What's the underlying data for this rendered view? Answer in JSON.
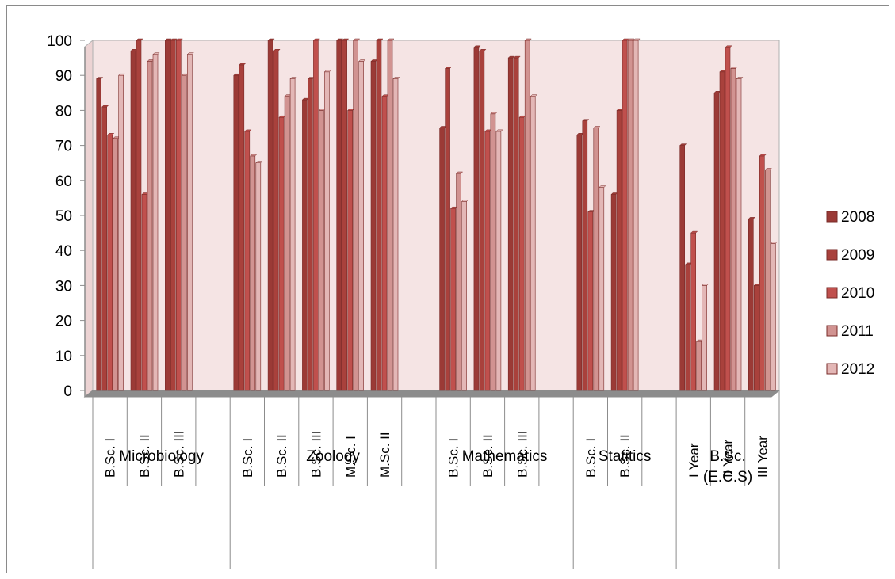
{
  "chart_data": {
    "type": "bar",
    "title": "",
    "xlabel": "",
    "ylabel": "",
    "ylim": [
      0,
      100
    ],
    "yticks": [
      "0",
      "10",
      "20",
      "30",
      "40",
      "50",
      "60",
      "70",
      "80",
      "90",
      "100"
    ],
    "grid": false,
    "legend_position": "right",
    "groups": [
      {
        "name": "Microbiology",
        "categories": [
          "B.Sc. I",
          "B.Sc. II",
          "B.Sc. III",
          ""
        ]
      },
      {
        "name": "Zoology",
        "categories": [
          "B.Sc. I",
          "B.Sc. II",
          "B.Sc. III",
          "M.Sc. I",
          "M.Sc. II",
          ""
        ]
      },
      {
        "name": "Mathematics",
        "categories": [
          "B.Sc. I",
          "B.Sc. II",
          "B.Sc. III",
          ""
        ]
      },
      {
        "name": "Statitics",
        "categories": [
          "B.Sc. I",
          "B.Sc. II",
          ""
        ]
      },
      {
        "name": "B.Sc. (E.C.S)",
        "categories": [
          "I Year",
          "II Year",
          "III Year"
        ]
      }
    ],
    "series": [
      {
        "name": "2008",
        "color": "#9b3a36",
        "values": [
          89,
          97,
          100,
          null,
          90,
          100,
          83,
          100,
          94,
          null,
          75,
          98,
          95,
          null,
          73,
          56,
          null,
          70,
          85,
          49
        ]
      },
      {
        "name": "2009",
        "color": "#a9413c",
        "values": [
          81,
          100,
          100,
          null,
          93,
          97,
          89,
          100,
          100,
          null,
          92,
          97,
          95,
          null,
          77,
          80,
          null,
          36,
          91,
          30
        ]
      },
      {
        "name": "2010",
        "color": "#c0504d",
        "values": [
          73,
          56,
          100,
          null,
          74,
          78,
          100,
          80,
          84,
          null,
          52,
          74,
          78,
          null,
          51,
          100,
          null,
          45,
          98,
          67
        ]
      },
      {
        "name": "2011",
        "color": "#d19391",
        "values": [
          72,
          94,
          90,
          null,
          67,
          84,
          80,
          100,
          100,
          null,
          62,
          79,
          100,
          null,
          75,
          100,
          null,
          14,
          92,
          63
        ]
      },
      {
        "name": "2012",
        "color": "#e3b7b6",
        "values": [
          90,
          96,
          96,
          null,
          65,
          89,
          91,
          94,
          89,
          null,
          54,
          74,
          84,
          null,
          58,
          100,
          null,
          30,
          89,
          42
        ]
      }
    ]
  }
}
